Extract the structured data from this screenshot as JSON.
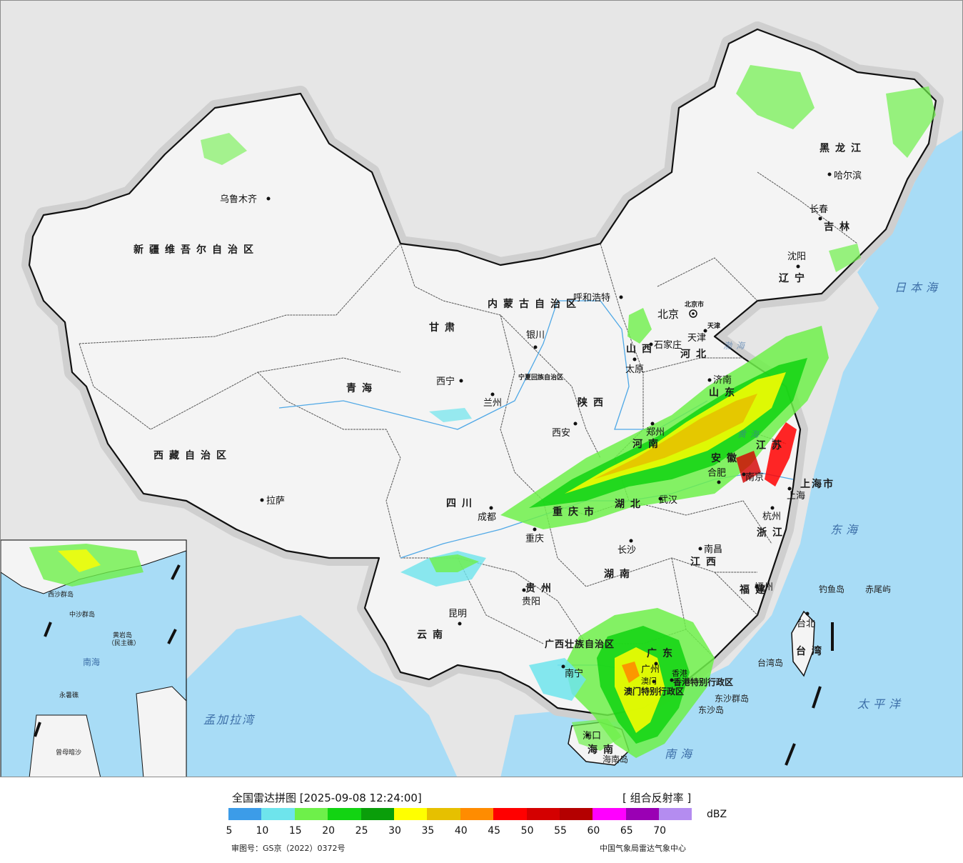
{
  "map": {
    "provinces": [
      "新疆维吾尔自治区",
      "西藏自治区",
      "青海",
      "甘肃",
      "四川",
      "内蒙古自治区",
      "黑龙江",
      "吉林",
      "辽宁",
      "河北",
      "山西",
      "陕西",
      "山东",
      "河南",
      "江苏",
      "安徽",
      "湖北",
      "重庆市",
      "浙江",
      "湖南",
      "江西",
      "贵州",
      "云南",
      "福建",
      "广东",
      "广西壮族自治区",
      "海南",
      "台湾",
      "宁夏回族自治区",
      "上海市",
      "香港特别行政区",
      "澳门特别行政区",
      "北京市",
      "天津"
    ],
    "cities": [
      "乌鲁木齐",
      "拉萨",
      "西宁",
      "兰州",
      "银川",
      "呼和浩特",
      "北京",
      "天津",
      "石家庄",
      "太原",
      "西安",
      "成都",
      "重庆",
      "济南",
      "郑州",
      "合肥",
      "武汉",
      "南京",
      "上海",
      "杭州",
      "长沙",
      "南昌",
      "贵阳",
      "昆明",
      "南宁",
      "广州",
      "福州",
      "台北",
      "海口",
      "哈尔滨",
      "长春",
      "沈阳",
      "香港",
      "澳门"
    ],
    "seas": [
      "日本海",
      "东海",
      "太平洋",
      "南海",
      "孟加拉湾",
      "黄海",
      "渤海"
    ],
    "islands": [
      "钓鱼岛",
      "赤尾屿",
      "台湾岛",
      "东沙群岛",
      "东沙岛",
      "海南岛",
      "中沙群岛",
      "黄岩岛",
      "（民主礁）",
      "永暑礁",
      "曾母暗沙",
      "西沙群岛"
    ],
    "colors": {
      "land": "#f2f2f2",
      "sea": "#a8dcf6",
      "outside": "#e6e6e6",
      "border": "#111111",
      "river": "#4fa8e6"
    }
  },
  "legend": {
    "title": "全国雷达拼图 [2025-09-08 12:24:00]",
    "product": "[ 组合反射率 ]",
    "unit": "dBZ",
    "ticks": [
      "5",
      "10",
      "15",
      "20",
      "25",
      "30",
      "35",
      "40",
      "45",
      "50",
      "55",
      "60",
      "65",
      "70"
    ],
    "colors": [
      "#3c9ce8",
      "#6ee4ec",
      "#6ef04a",
      "#12d412",
      "#0a9e0a",
      "#ffff00",
      "#e6c000",
      "#ff8c00",
      "#ff0000",
      "#d40000",
      "#b40000",
      "#ff00ff",
      "#9a00b4",
      "#b48cf0"
    ],
    "review_number": "审图号：GS京（2022）0372号",
    "credit": "中国气象局雷达气象中心"
  }
}
